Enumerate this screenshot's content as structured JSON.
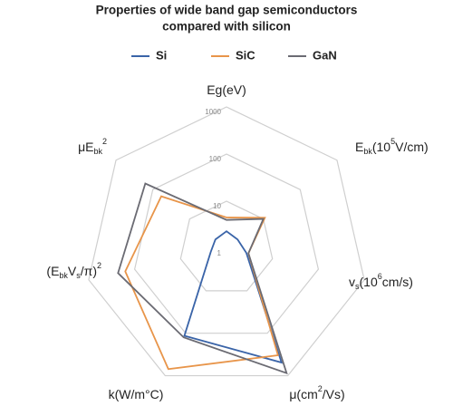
{
  "chart_data": {
    "type": "radar",
    "title": [
      "Properties of wide band gap semiconductors",
      "compared with silicon"
    ],
    "axes": [
      [
        {
          "text": "Eg(eV)"
        }
      ],
      [
        {
          "text": "E"
        },
        {
          "text": "bk",
          "shift": "sub"
        },
        {
          "text": "(10"
        },
        {
          "text": "5",
          "shift": "super"
        },
        {
          "text": "V/cm)"
        }
      ],
      [
        {
          "text": "v"
        },
        {
          "text": "s",
          "shift": "sub"
        },
        {
          "text": "(10"
        },
        {
          "text": "6",
          "shift": "super"
        },
        {
          "text": "cm/s)"
        }
      ],
      [
        {
          "text": "μ(cm"
        },
        {
          "text": "2",
          "shift": "super"
        },
        {
          "text": "/Vs)"
        }
      ],
      [
        {
          "text": "k(W/m°C)"
        }
      ],
      [
        {
          "text": "(E"
        },
        {
          "text": "bk",
          "shift": "sub"
        },
        {
          "text": "V"
        },
        {
          "text": "s",
          "shift": "sub"
        },
        {
          "text": "/π)"
        },
        {
          "text": "2",
          "shift": "super"
        }
      ],
      [
        {
          "text": "μE"
        },
        {
          "text": "bk",
          "shift": "sub"
        },
        {
          "text": "2",
          "shift": "super"
        }
      ]
    ],
    "log_scale": true,
    "rlim": [
      1,
      1000
    ],
    "rticks": [
      1,
      10,
      100,
      1000
    ],
    "series": [
      {
        "name": "Si",
        "color": "#3a64a8",
        "values": [
          2.3,
          2,
          2.7,
          490,
          115,
          2.2,
          2
        ]
      },
      {
        "name": "SiC",
        "color": "#e8954a",
        "values": [
          4.5,
          11,
          3,
          330,
          700,
          160,
          59
        ]
      },
      {
        "name": "GaN",
        "color": "#6b6b73",
        "values": [
          4,
          10,
          3,
          870,
          125,
          230,
          160
        ]
      }
    ]
  }
}
